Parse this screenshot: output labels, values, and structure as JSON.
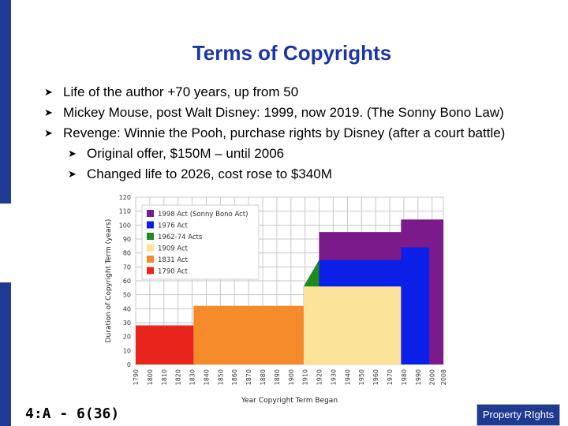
{
  "slide": {
    "title": "Terms of Copyrights",
    "bullets": [
      {
        "text": "Life of the author +70 years, up from 50",
        "level": 1
      },
      {
        "text": "Mickey Mouse, post Walt Disney: 1999, now 2019.  (The Sonny Bono Law)",
        "level": 1
      },
      {
        "text": "Revenge: Winnie the Pooh, purchase rights by Disney (after a court battle)",
        "level": 1
      },
      {
        "text": "Original offer, $150M – until 2006",
        "level": 2
      },
      {
        "text": "Changed life to 2026, cost rose to $340M",
        "level": 2
      }
    ],
    "bullet_icon": "arrow-bullet-icon",
    "footer_left": "4:A - 6(36)",
    "footer_right": "Property RIghts"
  },
  "colors": {
    "accent": "#1f3a93",
    "title": "#1a35a8"
  },
  "chart_data": {
    "type": "area",
    "title": "",
    "xlabel": "Year Copyright Term Began",
    "ylabel": "Duration of Copyright Term (years)",
    "xlim": [
      1790,
      2008
    ],
    "ylim": [
      0,
      120
    ],
    "xticks": [
      1790,
      1800,
      1810,
      1820,
      1830,
      1840,
      1850,
      1860,
      1870,
      1880,
      1890,
      1900,
      1910,
      1920,
      1930,
      1940,
      1950,
      1960,
      1970,
      1980,
      1990,
      2000,
      2008
    ],
    "yticks": [
      0,
      10,
      20,
      30,
      40,
      50,
      60,
      70,
      80,
      90,
      100,
      110,
      120
    ],
    "grid": true,
    "legend_position": "top-left",
    "series": [
      {
        "name": "1790 Act",
        "color": "#e8241c",
        "x": [
          1790,
          1831
        ],
        "y": [
          28,
          28
        ]
      },
      {
        "name": "1831 Act",
        "color": "#f58a2a",
        "x": [
          1831,
          1909
        ],
        "y": [
          42,
          42
        ]
      },
      {
        "name": "1909 Act",
        "color": "#fbe49a",
        "x": [
          1909,
          1978
        ],
        "y": [
          56,
          56
        ]
      },
      {
        "name": "1962-74 Acts",
        "color": "#1f8a1f",
        "x": [
          1909,
          1920
        ],
        "y": [
          56,
          75
        ]
      },
      {
        "name": "1976 Act",
        "color": "#0b1fe8",
        "x": [
          1909,
          1920,
          1978,
          1978,
          1998
        ],
        "y": [
          56,
          75,
          75,
          84,
          84
        ]
      },
      {
        "name": "1998 Act (Sonny Bono Act)",
        "color": "#7b1a8a",
        "x": [
          1920,
          1978,
          1978,
          1998,
          2008
        ],
        "y": [
          95,
          95,
          104,
          104,
          104
        ]
      }
    ]
  }
}
